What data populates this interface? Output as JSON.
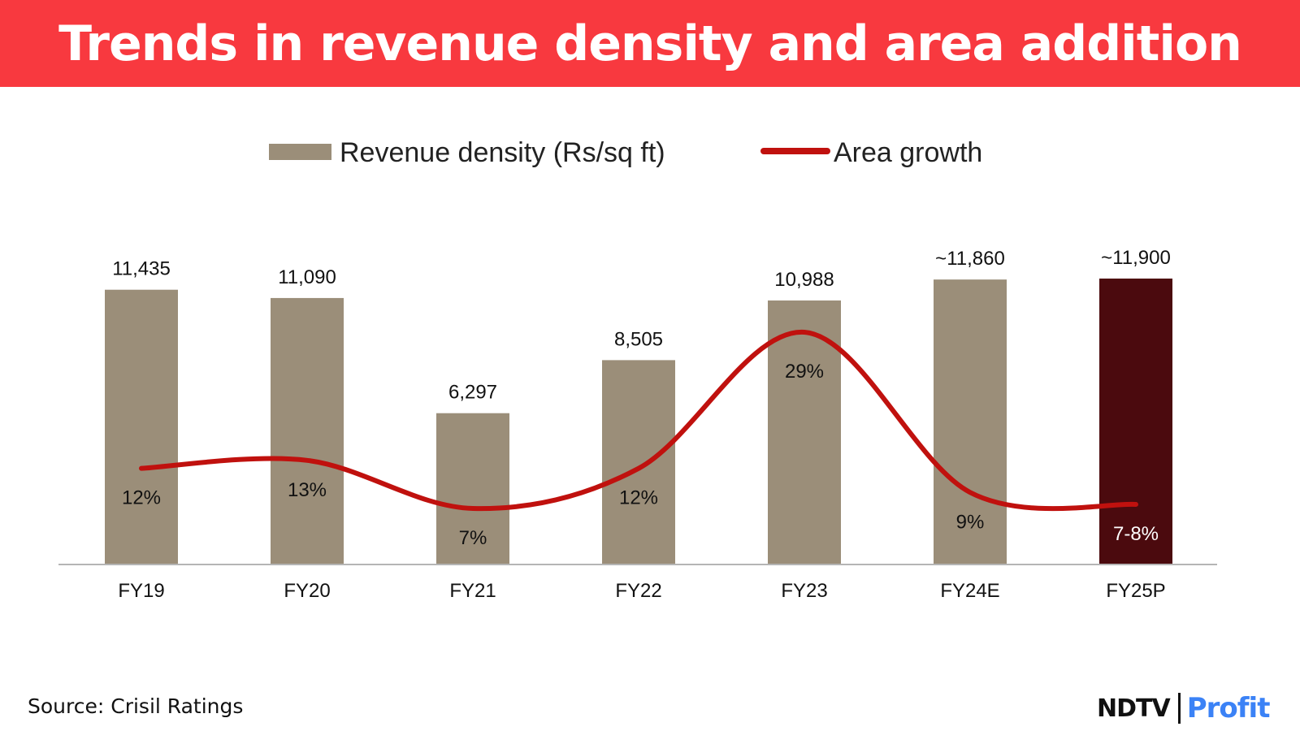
{
  "header": {
    "title": "Trends in revenue density and area addition"
  },
  "chart_data": {
    "type": "bar",
    "categories": [
      "FY19",
      "FY20",
      "FY21",
      "FY22",
      "FY23",
      "FY24E",
      "FY25P"
    ],
    "series": [
      {
        "name": "Revenue density (Rs/sq ft)",
        "type": "bar",
        "values": [
          11435,
          11090,
          6297,
          8505,
          10988,
          11860,
          11900
        ],
        "labels": [
          "11,435",
          "11,090",
          "6,297",
          "8,505",
          "10,988",
          "~11,860",
          "~11,900"
        ],
        "color": "#9b8e79",
        "highlight_color": "#4b0a0e"
      },
      {
        "name": "Area growth",
        "type": "line",
        "values": [
          12,
          13,
          7,
          12,
          29,
          9,
          7.5
        ],
        "labels": [
          "12%",
          "13%",
          "7%",
          "12%",
          "29%",
          "9%",
          "7-8%"
        ],
        "color": "#c0110e"
      }
    ],
    "bar_ylim": [
      0,
      12000
    ],
    "line_ylim": [
      0,
      36
    ],
    "legend_position": "top",
    "grid": false,
    "xlabel": "",
    "ylabel": ""
  },
  "footer": {
    "source": "Source: Crisil Ratings"
  },
  "brand": {
    "left": "NDTV",
    "right": "Profit"
  }
}
